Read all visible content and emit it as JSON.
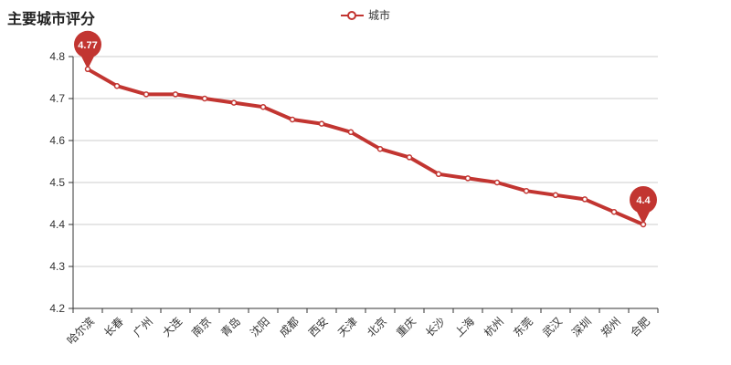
{
  "title": "主要城市评分",
  "legend": {
    "items": [
      {
        "label": "城市",
        "color": "#c23531"
      }
    ]
  },
  "colors": {
    "series": "#c23531",
    "axis": "#333333",
    "grid": "#cccccc",
    "tick_label": "#333333",
    "pin_text": "#ffffff",
    "background": "#ffffff"
  },
  "chart_data": {
    "type": "line",
    "title": "主要城市评分",
    "series_name": "城市",
    "categories": [
      "哈尔滨",
      "长春",
      "广州",
      "大连",
      "南京",
      "青岛",
      "沈阳",
      "成都",
      "西安",
      "天津",
      "北京",
      "重庆",
      "长沙",
      "上海",
      "杭州",
      "东莞",
      "武汉",
      "深圳",
      "郑州",
      "合肥"
    ],
    "values": [
      4.77,
      4.73,
      4.71,
      4.71,
      4.7,
      4.69,
      4.68,
      4.65,
      4.64,
      4.62,
      4.58,
      4.56,
      4.52,
      4.51,
      4.5,
      4.48,
      4.47,
      4.46,
      4.43,
      4.4
    ],
    "ylim": [
      4.2,
      4.8
    ],
    "ytick_labels": [
      "4.2",
      "4.3",
      "4.4",
      "4.5",
      "4.6",
      "4.7",
      "4.8"
    ],
    "xlabel": "",
    "ylabel": "",
    "grid": true,
    "legend_position": "top-center",
    "xlabel_rotate": 45,
    "mark_points": [
      {
        "type": "max",
        "label": "4.77",
        "category": "哈尔滨",
        "value": 4.77
      },
      {
        "type": "min",
        "label": "4.4",
        "category": "合肥",
        "value": 4.4
      }
    ]
  }
}
